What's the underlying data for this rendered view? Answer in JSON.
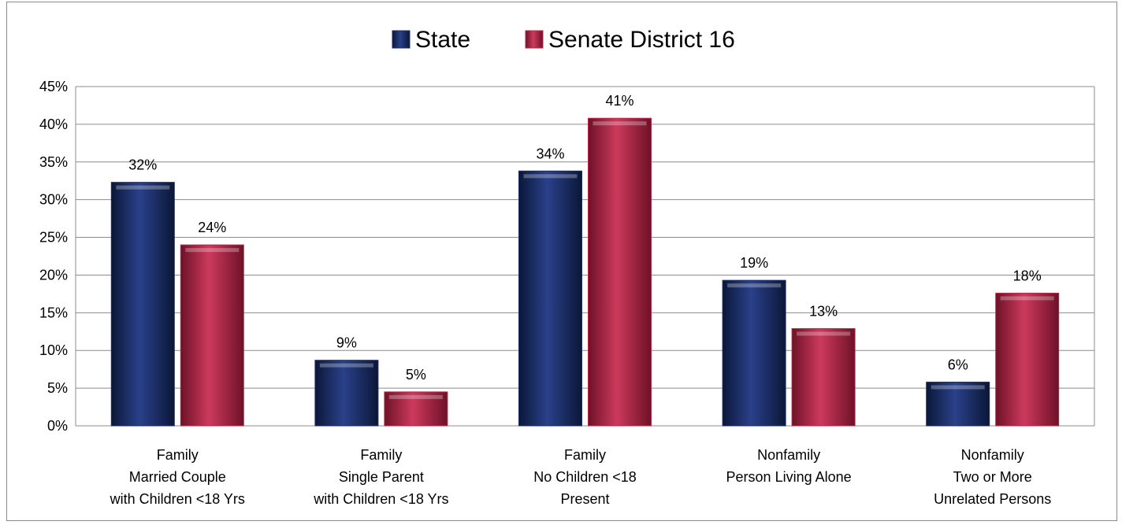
{
  "chart_data": {
    "type": "bar",
    "categories": [
      [
        "Family",
        "Married Couple",
        "with Children <18 Yrs"
      ],
      [
        "Family",
        "Single Parent",
        "with Children <18 Yrs"
      ],
      [
        "Family",
        "No Children <18",
        "Present"
      ],
      [
        "Nonfamily",
        "Person Living Alone"
      ],
      [
        "Nonfamily",
        "Two or More",
        "Unrelated Persons"
      ]
    ],
    "series": [
      {
        "name": "State",
        "values": [
          32.3,
          8.7,
          33.8,
          19.3,
          5.8
        ],
        "labels": [
          "32%",
          "9%",
          "34%",
          "19%",
          "6%"
        ],
        "color": "#1b2f6b"
      },
      {
        "name": "Senate District 16",
        "values": [
          24.0,
          4.5,
          40.8,
          12.9,
          17.6
        ],
        "labels": [
          "24%",
          "5%",
          "41%",
          "13%",
          "18%"
        ],
        "color": "#b8274b"
      }
    ],
    "ylim": [
      0,
      45
    ],
    "y_ticks": [
      "0%",
      "5%",
      "10%",
      "15%",
      "20%",
      "25%",
      "30%",
      "35%",
      "40%",
      "45%"
    ],
    "grid": true,
    "legend_position": "top-center",
    "title": "",
    "xlabel": "",
    "ylabel": ""
  }
}
